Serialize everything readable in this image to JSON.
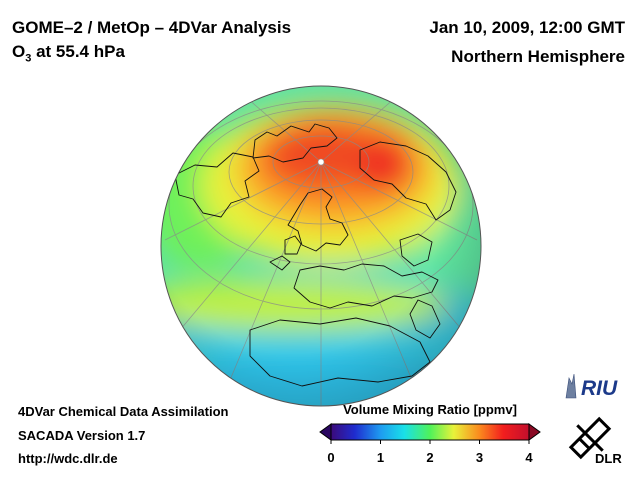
{
  "header": {
    "title_left": "GOME–2 / MetOp – 4DVar Analysis",
    "species_base": "O",
    "species_sub": "3",
    "species_rest": " at 55.4 hPa",
    "datetime": "Jan 10, 2009, 12:00 GMT",
    "region": "Northern Hemisphere"
  },
  "footer": {
    "line1": "4DVar Chemical Data Assimilation",
    "line2": "SACADA Version 1.7",
    "line3": "http://wdc.dlr.de"
  },
  "colorbar": {
    "title": "Volume Mixing Ratio [ppmv]",
    "ticks": [
      "0",
      "1",
      "2",
      "3",
      "4"
    ],
    "min": 0,
    "max": 4,
    "colors": [
      "#3b0a7a",
      "#1f2ccf",
      "#1e9bf0",
      "#19e0e8",
      "#4ff25a",
      "#e8f23a",
      "#fb8a1e",
      "#f21e1e",
      "#c40f2d"
    ]
  },
  "logos": {
    "riu": "RIU",
    "dlr": "DLR"
  }
}
